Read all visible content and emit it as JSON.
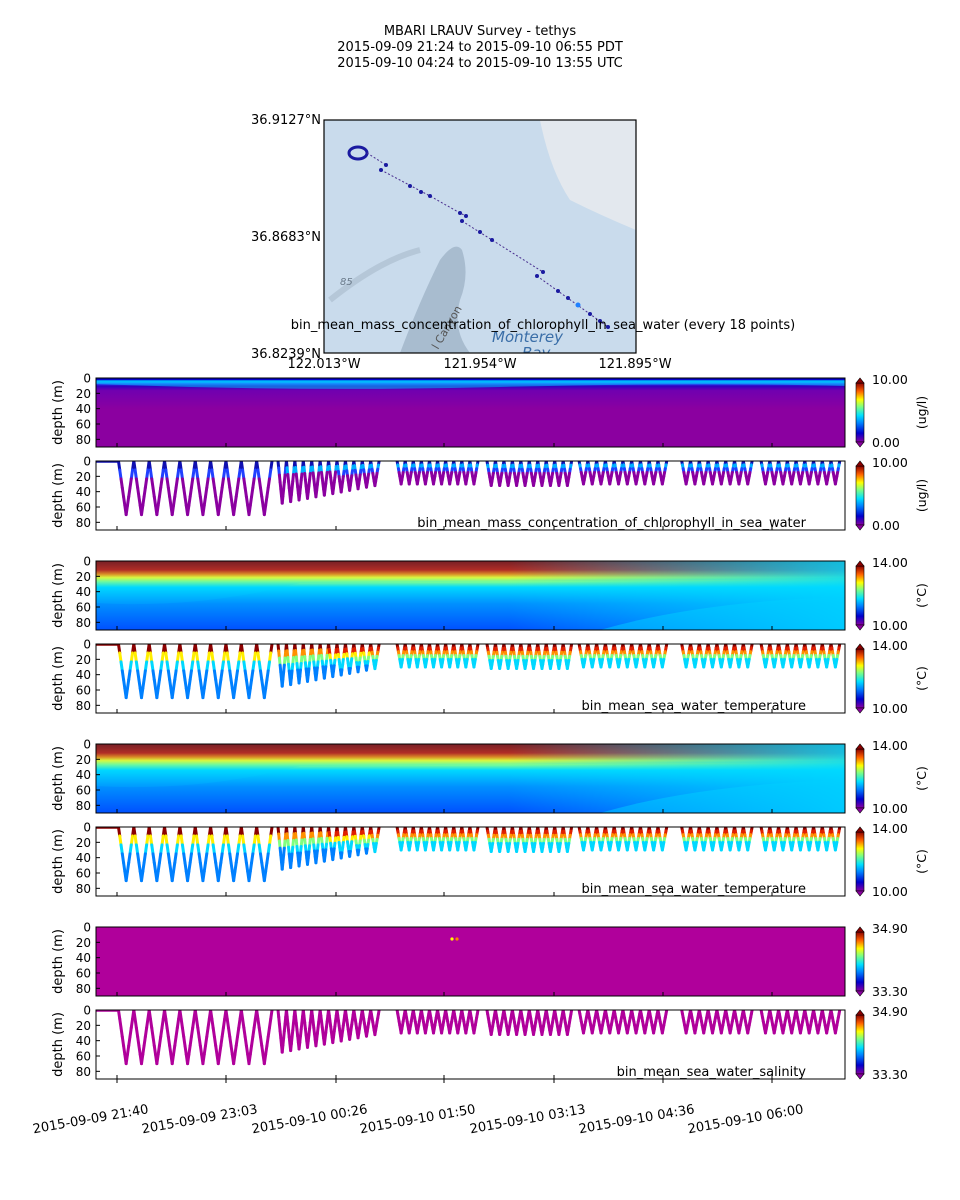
{
  "title": {
    "line1": "MBARI LRAUV Survey - tethys",
    "line2": "2015-09-09 21:24  to  2015-09-10 06:55 PDT",
    "line3": "2015-09-10 04:24  to  2015-09-10 13:55 UTC"
  },
  "colors": {
    "water_light": "#c9dbec",
    "canyon": "#a8bccf",
    "track": "#1a1aa0",
    "salinity": "#b0009b",
    "chl_bg": "#8b00a0",
    "temp_surface": "#8b0000"
  },
  "map": {
    "lat_labels": [
      "36.9127°N",
      "36.8683°N",
      "36.8239°N"
    ],
    "lon_labels": [
      "122.013°W",
      "121.954°W",
      "121.895°W"
    ],
    "place_label": "Monterey",
    "place_label2": "Bay",
    "canyon_label": "l Canyon",
    "depth_marker": "85",
    "caption": "bin_mean_mass_concentration_of_chlorophyll_in_sea_water (every 18 points)"
  },
  "chart_data": {
    "type": "heatmap",
    "xlabel": "",
    "x_ticks": [
      "2015-09-09 21:40",
      "2015-09-09 23:03",
      "2015-09-10 00:26",
      "2015-09-10 01:50",
      "2015-09-10 03:13",
      "2015-09-10 04:36",
      "2015-09-10 06:00"
    ],
    "depth_ticks": [
      "0",
      "20",
      "40",
      "60",
      "80"
    ],
    "ylabel": "depth (m)",
    "ylim": [
      90,
      0
    ],
    "panels": [
      {
        "kind": "contour",
        "variable": "chlorophyll",
        "unit": "(ug/l)",
        "cmin": "0.00",
        "cmax": "10.00",
        "label": ""
      },
      {
        "kind": "profile",
        "variable": "chlorophyll",
        "unit": "(ug/l)",
        "cmin": "0.00",
        "cmax": "10.00",
        "label": "bin_mean_mass_concentration_of_chlorophyll_in_sea_water"
      },
      {
        "kind": "contour",
        "variable": "temperature",
        "unit": "(°C)",
        "cmin": "10.00",
        "cmax": "14.00",
        "label": ""
      },
      {
        "kind": "profile",
        "variable": "temperature",
        "unit": "(°C)",
        "cmin": "10.00",
        "cmax": "14.00",
        "label": "bin_mean_sea_water_temperature"
      },
      {
        "kind": "contour",
        "variable": "temperature",
        "unit": "(°C)",
        "cmin": "10.00",
        "cmax": "14.00",
        "label": ""
      },
      {
        "kind": "profile",
        "variable": "temperature",
        "unit": "(°C)",
        "cmin": "10.00",
        "cmax": "14.00",
        "label": "bin_mean_sea_water_temperature"
      },
      {
        "kind": "contour",
        "variable": "salinity",
        "unit": "",
        "cmin": "33.30",
        "cmax": "34.90",
        "label": ""
      },
      {
        "kind": "profile",
        "variable": "salinity",
        "unit": "",
        "cmin": "33.30",
        "cmax": "34.90",
        "label": "bin_mean_sea_water_salinity"
      }
    ],
    "yo_segments": [
      {
        "t0": 0.03,
        "t1": 0.235,
        "max_depth": 70
      },
      {
        "t0": 0.243,
        "t1": 0.378,
        "max_depth": 35
      },
      {
        "t0": 0.402,
        "t1": 0.51,
        "max_depth": 30
      },
      {
        "t0": 0.522,
        "t1": 0.635,
        "max_depth": 32
      },
      {
        "t0": 0.645,
        "t1": 0.762,
        "max_depth": 30
      },
      {
        "t0": 0.782,
        "t1": 0.876,
        "max_depth": 30
      },
      {
        "t0": 0.888,
        "t1": 0.993,
        "max_depth": 30
      }
    ]
  }
}
